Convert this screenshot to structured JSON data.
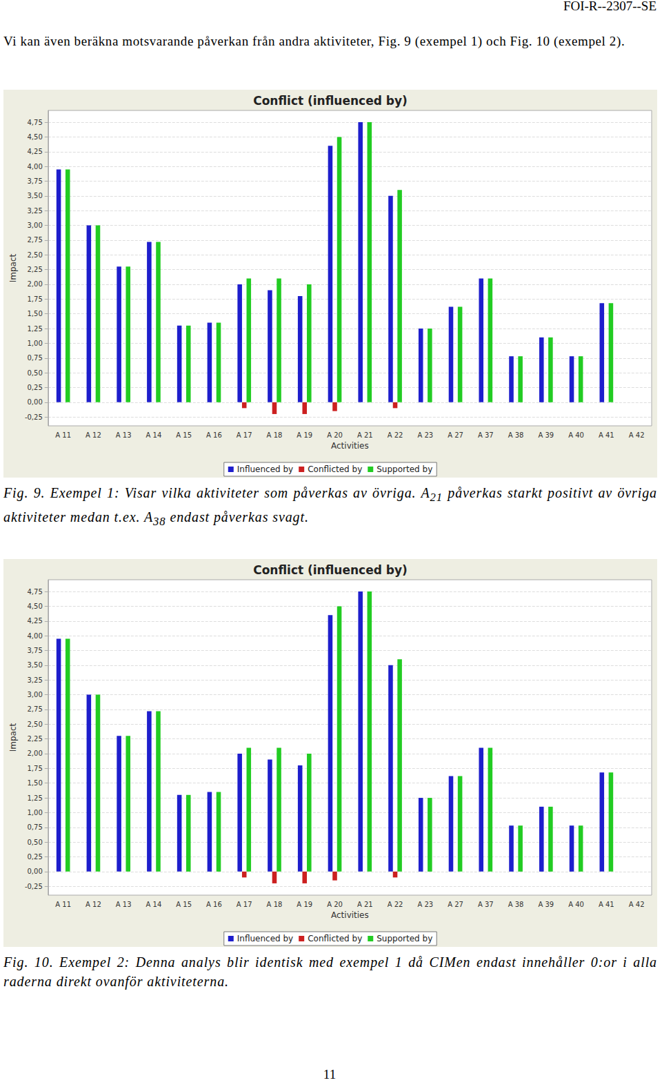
{
  "header": "FOI-R--2307--SE",
  "intro": "Vi kan även beräkna motsvarande påverkan från andra aktiviteter, Fig. 9 (exempel 1) och Fig. 10 (exempel 2).",
  "chart_data": [
    {
      "type": "bar",
      "title": "Conflict (influenced by)",
      "x_label": "Activities",
      "y_label": "Impact",
      "categories": [
        "A 11",
        "A 12",
        "A 13",
        "A 14",
        "A 15",
        "A 16",
        "A 17",
        "A 18",
        "A 19",
        "A 20",
        "A 21",
        "A 22",
        "A 23",
        "A 27",
        "A 37",
        "A 38",
        "A 39",
        "A 40",
        "A 41",
        "A 42"
      ],
      "series": [
        {
          "name": "Influenced by",
          "color": "#1e1ecc",
          "values": [
            3.95,
            3.0,
            2.3,
            2.72,
            1.3,
            1.35,
            2.0,
            1.9,
            1.8,
            4.35,
            4.75,
            3.5,
            1.25,
            1.62,
            2.1,
            0.78,
            1.1,
            0.78,
            1.68,
            0
          ]
        },
        {
          "name": "Conflicted by",
          "color": "#cc2020",
          "values": [
            0,
            0,
            0,
            0,
            0,
            0,
            -0.1,
            -0.2,
            -0.2,
            -0.15,
            0,
            -0.1,
            0,
            0,
            0,
            0,
            0,
            0,
            0,
            0
          ]
        },
        {
          "name": "Supported by",
          "color": "#22cc22",
          "values": [
            3.95,
            3.0,
            2.3,
            2.72,
            1.3,
            1.35,
            2.1,
            2.1,
            2.0,
            4.5,
            4.75,
            3.6,
            1.25,
            1.62,
            2.1,
            0.78,
            1.1,
            0.78,
            1.68,
            0
          ]
        }
      ],
      "ylim": [
        -0.4,
        4.95
      ],
      "yticks": [
        {
          "value": -0.25,
          "label": "-0,25"
        },
        {
          "value": 0,
          "label": "0,00"
        },
        {
          "value": 0.25,
          "label": "0,25"
        },
        {
          "value": 0.5,
          "label": "0,50"
        },
        {
          "value": 0.75,
          "label": "0,75"
        },
        {
          "value": 1,
          "label": "1,00"
        },
        {
          "value": 1.25,
          "label": "1,25"
        },
        {
          "value": 1.5,
          "label": "1,50"
        },
        {
          "value": 1.75,
          "label": "1,75"
        },
        {
          "value": 2,
          "label": "2,00"
        },
        {
          "value": 2.25,
          "label": "2,25"
        },
        {
          "value": 2.5,
          "label": "2,50"
        },
        {
          "value": 2.75,
          "label": "2,75"
        },
        {
          "value": 3,
          "label": "3,00"
        },
        {
          "value": 3.25,
          "label": "3,25"
        },
        {
          "value": 3.5,
          "label": "3,50"
        },
        {
          "value": 3.75,
          "label": "3,75"
        },
        {
          "value": 4,
          "label": "4,00"
        },
        {
          "value": 4.25,
          "label": "4,25"
        },
        {
          "value": 4.5,
          "label": "4,50"
        },
        {
          "value": 4.75,
          "label": "4,75"
        }
      ],
      "grid": true,
      "legend": "bottom"
    },
    {
      "type": "bar",
      "title": "Conflict (influenced by)",
      "x_label": "Activities",
      "y_label": "Impact",
      "categories": [
        "A 11",
        "A 12",
        "A 13",
        "A 14",
        "A 15",
        "A 16",
        "A 17",
        "A 18",
        "A 19",
        "A 20",
        "A 21",
        "A 22",
        "A 23",
        "A 27",
        "A 37",
        "A 38",
        "A 39",
        "A 40",
        "A 41",
        "A 42"
      ],
      "series": [
        {
          "name": "Influenced by",
          "color": "#1e1ecc",
          "values": [
            3.95,
            3.0,
            2.3,
            2.72,
            1.3,
            1.35,
            2.0,
            1.9,
            1.8,
            4.35,
            4.75,
            3.5,
            1.25,
            1.62,
            2.1,
            0.78,
            1.1,
            0.78,
            1.68,
            0
          ]
        },
        {
          "name": "Conflicted by",
          "color": "#cc2020",
          "values": [
            0,
            0,
            0,
            0,
            0,
            0,
            -0.1,
            -0.2,
            -0.2,
            -0.15,
            0,
            -0.1,
            0,
            0,
            0,
            0,
            0,
            0,
            0,
            0
          ]
        },
        {
          "name": "Supported by",
          "color": "#22cc22",
          "values": [
            3.95,
            3.0,
            2.3,
            2.72,
            1.3,
            1.35,
            2.1,
            2.1,
            2.0,
            4.5,
            4.75,
            3.6,
            1.25,
            1.62,
            2.1,
            0.78,
            1.1,
            0.78,
            1.68,
            0
          ]
        }
      ],
      "ylim": [
        -0.4,
        4.95
      ],
      "yticks": [
        {
          "value": -0.25,
          "label": "-0,25"
        },
        {
          "value": 0,
          "label": "0,00"
        },
        {
          "value": 0.25,
          "label": "0,25"
        },
        {
          "value": 0.5,
          "label": "0,50"
        },
        {
          "value": 0.75,
          "label": "0,75"
        },
        {
          "value": 1,
          "label": "1,00"
        },
        {
          "value": 1.25,
          "label": "1,25"
        },
        {
          "value": 1.5,
          "label": "1,50"
        },
        {
          "value": 1.75,
          "label": "1,75"
        },
        {
          "value": 2,
          "label": "2,00"
        },
        {
          "value": 2.25,
          "label": "2,25"
        },
        {
          "value": 2.5,
          "label": "2,50"
        },
        {
          "value": 2.75,
          "label": "2,75"
        },
        {
          "value": 3,
          "label": "3,00"
        },
        {
          "value": 3.25,
          "label": "3,25"
        },
        {
          "value": 3.5,
          "label": "3,50"
        },
        {
          "value": 3.75,
          "label": "3,75"
        },
        {
          "value": 4,
          "label": "4,00"
        },
        {
          "value": 4.25,
          "label": "4,25"
        },
        {
          "value": 4.5,
          "label": "4,50"
        },
        {
          "value": 4.75,
          "label": "4,75"
        }
      ],
      "grid": true,
      "legend": "bottom"
    }
  ],
  "captions": [
    [
      "Fig. 9. Exempel 1: Visar vilka aktiviteter som påverkas av övriga. A",
      {
        "sub": "21"
      },
      " påverkas starkt positivt av övriga aktiviteter medan t.ex. A",
      {
        "sub": "38"
      },
      " endast påverkas svagt."
    ],
    [
      "Fig. 10. Exempel 2: Denna analys blir identisk med exempel 1 då CIMen endast innehåller 0:or i alla raderna direkt ovanför aktiviteterna."
    ]
  ],
  "page_number": "11"
}
